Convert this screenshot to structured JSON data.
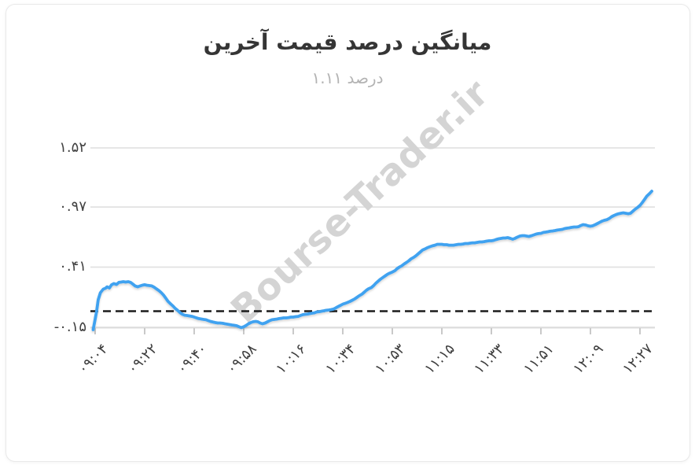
{
  "title": "میانگین درصد قیمت آخرین",
  "subtitle": "درصد ۱.۱۱",
  "watermark": "Bourse-Trader.ir",
  "colors": {
    "line": "#3fa2f0",
    "grid": "#e2e2e2",
    "axis": "#dcdcdc",
    "tick": "#c9c9c9",
    "baseline_dash": "#1b1b1b",
    "watermark": "#d4d4d4",
    "title": "#353535",
    "subtitle": "#b3b3b3",
    "tick_text": "#3d3d3d"
  },
  "chart_data": {
    "type": "line",
    "title": "میانگین درصد قیمت آخرین",
    "subtitle": "درصد ۱.۱۱",
    "legend_position": "none",
    "grid": "horizontal",
    "y_axis": {
      "tick_labels": [
        "۱.۵۲",
        "۰.۹۷",
        "۰.۴۱",
        "-۰.۱۵"
      ],
      "tick_values": [
        1.52,
        0.97,
        0.41,
        -0.15
      ],
      "range": [
        -0.15,
        1.52
      ]
    },
    "x_axis": {
      "tick_labels": [
        "۰۹:۰۴",
        "۰۹:۲۲",
        "۰۹:۴۰",
        "۰۹:۵۸",
        "۱۰:۱۶",
        "۱۰:۳۴",
        "۱۰:۵۳",
        "۱۱:۱۵",
        "۱۱:۳۳",
        "۱۱:۵۱",
        "۱۲:۰۹",
        "۱۲:۲۷"
      ],
      "unit": "time"
    },
    "baseline": {
      "value": 0,
      "style": "dashed"
    },
    "series": [
      {
        "name": "میانگین درصد قیمت آخرین",
        "final_value": 1.11,
        "points": [
          [
            0,
            -0.172
          ],
          [
            0.003,
            -0.091
          ],
          [
            0.006,
            -0.004
          ],
          [
            0.009,
            0.106
          ],
          [
            0.013,
            0.172
          ],
          [
            0.018,
            0.205
          ],
          [
            0.022,
            0.213
          ],
          [
            0.025,
            0.227
          ],
          [
            0.029,
            0.216
          ],
          [
            0.033,
            0.246
          ],
          [
            0.037,
            0.257
          ],
          [
            0.042,
            0.249
          ],
          [
            0.046,
            0.268
          ],
          [
            0.05,
            0.271
          ],
          [
            0.054,
            0.275
          ],
          [
            0.058,
            0.271
          ],
          [
            0.063,
            0.275
          ],
          [
            0.067,
            0.268
          ],
          [
            0.071,
            0.253
          ],
          [
            0.075,
            0.235
          ],
          [
            0.08,
            0.227
          ],
          [
            0.084,
            0.235
          ],
          [
            0.088,
            0.242
          ],
          [
            0.092,
            0.246
          ],
          [
            0.096,
            0.242
          ],
          [
            0.101,
            0.238
          ],
          [
            0.105,
            0.235
          ],
          [
            0.109,
            0.224
          ],
          [
            0.113,
            0.209
          ],
          [
            0.118,
            0.191
          ],
          [
            0.122,
            0.172
          ],
          [
            0.126,
            0.15
          ],
          [
            0.13,
            0.121
          ],
          [
            0.134,
            0.092
          ],
          [
            0.139,
            0.066
          ],
          [
            0.143,
            0.048
          ],
          [
            0.147,
            0.026
          ],
          [
            0.151,
            0.008
          ],
          [
            0.156,
            -0.015
          ],
          [
            0.16,
            -0.029
          ],
          [
            0.164,
            -0.037
          ],
          [
            0.168,
            -0.04
          ],
          [
            0.172,
            -0.044
          ],
          [
            0.177,
            -0.048
          ],
          [
            0.181,
            -0.055
          ],
          [
            0.185,
            -0.062
          ],
          [
            0.189,
            -0.069
          ],
          [
            0.194,
            -0.073
          ],
          [
            0.198,
            -0.077
          ],
          [
            0.202,
            -0.08
          ],
          [
            0.206,
            -0.088
          ],
          [
            0.21,
            -0.095
          ],
          [
            0.215,
            -0.102
          ],
          [
            0.219,
            -0.106
          ],
          [
            0.223,
            -0.11
          ],
          [
            0.227,
            -0.11
          ],
          [
            0.232,
            -0.113
          ],
          [
            0.236,
            -0.117
          ],
          [
            0.24,
            -0.121
          ],
          [
            0.244,
            -0.124
          ],
          [
            0.248,
            -0.128
          ],
          [
            0.253,
            -0.132
          ],
          [
            0.257,
            -0.135
          ],
          [
            0.261,
            -0.144
          ],
          [
            0.265,
            -0.153
          ],
          [
            0.27,
            -0.144
          ],
          [
            0.274,
            -0.132
          ],
          [
            0.278,
            -0.117
          ],
          [
            0.282,
            -0.106
          ],
          [
            0.286,
            -0.099
          ],
          [
            0.291,
            -0.095
          ],
          [
            0.295,
            -0.099
          ],
          [
            0.299,
            -0.11
          ],
          [
            0.303,
            -0.117
          ],
          [
            0.308,
            -0.11
          ],
          [
            0.312,
            -0.099
          ],
          [
            0.316,
            -0.088
          ],
          [
            0.32,
            -0.08
          ],
          [
            0.324,
            -0.077
          ],
          [
            0.329,
            -0.073
          ],
          [
            0.333,
            -0.069
          ],
          [
            0.337,
            -0.066
          ],
          [
            0.341,
            -0.062
          ],
          [
            0.346,
            -0.062
          ],
          [
            0.35,
            -0.059
          ],
          [
            0.354,
            -0.055
          ],
          [
            0.358,
            -0.055
          ],
          [
            0.362,
            -0.051
          ],
          [
            0.367,
            -0.048
          ],
          [
            0.371,
            -0.04
          ],
          [
            0.375,
            -0.033
          ],
          [
            0.379,
            -0.029
          ],
          [
            0.384,
            -0.026
          ],
          [
            0.388,
            -0.022
          ],
          [
            0.392,
            -0.018
          ],
          [
            0.396,
            -0.015
          ],
          [
            0.4,
            -0.007
          ],
          [
            0.405,
            -0.004
          ],
          [
            0.409,
            0
          ],
          [
            0.413,
            0.004
          ],
          [
            0.417,
            0.008
          ],
          [
            0.422,
            0.011
          ],
          [
            0.426,
            0.015
          ],
          [
            0.43,
            0.019
          ],
          [
            0.434,
            0.03
          ],
          [
            0.438,
            0.042
          ],
          [
            0.443,
            0.055
          ],
          [
            0.447,
            0.066
          ],
          [
            0.451,
            0.073
          ],
          [
            0.455,
            0.081
          ],
          [
            0.46,
            0.092
          ],
          [
            0.464,
            0.103
          ],
          [
            0.468,
            0.114
          ],
          [
            0.472,
            0.128
          ],
          [
            0.476,
            0.143
          ],
          [
            0.481,
            0.158
          ],
          [
            0.485,
            0.176
          ],
          [
            0.489,
            0.194
          ],
          [
            0.493,
            0.209
          ],
          [
            0.498,
            0.22
          ],
          [
            0.502,
            0.238
          ],
          [
            0.506,
            0.26
          ],
          [
            0.51,
            0.279
          ],
          [
            0.514,
            0.297
          ],
          [
            0.519,
            0.315
          ],
          [
            0.523,
            0.33
          ],
          [
            0.527,
            0.344
          ],
          [
            0.531,
            0.355
          ],
          [
            0.536,
            0.366
          ],
          [
            0.54,
            0.377
          ],
          [
            0.544,
            0.396
          ],
          [
            0.548,
            0.41
          ],
          [
            0.552,
            0.421
          ],
          [
            0.557,
            0.44
          ],
          [
            0.561,
            0.454
          ],
          [
            0.565,
            0.469
          ],
          [
            0.569,
            0.487
          ],
          [
            0.574,
            0.502
          ],
          [
            0.578,
            0.517
          ],
          [
            0.582,
            0.535
          ],
          [
            0.586,
            0.553
          ],
          [
            0.59,
            0.571
          ],
          [
            0.595,
            0.582
          ],
          [
            0.599,
            0.593
          ],
          [
            0.603,
            0.601
          ],
          [
            0.607,
            0.608
          ],
          [
            0.612,
            0.615
          ],
          [
            0.616,
            0.623
          ],
          [
            0.62,
            0.623
          ],
          [
            0.624,
            0.623
          ],
          [
            0.628,
            0.619
          ],
          [
            0.633,
            0.619
          ],
          [
            0.637,
            0.615
          ],
          [
            0.641,
            0.615
          ],
          [
            0.645,
            0.615
          ],
          [
            0.65,
            0.619
          ],
          [
            0.654,
            0.623
          ],
          [
            0.658,
            0.623
          ],
          [
            0.662,
            0.626
          ],
          [
            0.666,
            0.63
          ],
          [
            0.671,
            0.63
          ],
          [
            0.675,
            0.634
          ],
          [
            0.679,
            0.637
          ],
          [
            0.683,
            0.637
          ],
          [
            0.688,
            0.641
          ],
          [
            0.692,
            0.645
          ],
          [
            0.696,
            0.645
          ],
          [
            0.7,
            0.648
          ],
          [
            0.704,
            0.652
          ],
          [
            0.709,
            0.656
          ],
          [
            0.713,
            0.656
          ],
          [
            0.717,
            0.659
          ],
          [
            0.721,
            0.667
          ],
          [
            0.726,
            0.674
          ],
          [
            0.73,
            0.678
          ],
          [
            0.734,
            0.681
          ],
          [
            0.738,
            0.681
          ],
          [
            0.742,
            0.685
          ],
          [
            0.747,
            0.678
          ],
          [
            0.751,
            0.67
          ],
          [
            0.755,
            0.678
          ],
          [
            0.759,
            0.689
          ],
          [
            0.764,
            0.7
          ],
          [
            0.768,
            0.703
          ],
          [
            0.772,
            0.703
          ],
          [
            0.776,
            0.7
          ],
          [
            0.78,
            0.696
          ],
          [
            0.785,
            0.703
          ],
          [
            0.789,
            0.711
          ],
          [
            0.793,
            0.718
          ],
          [
            0.797,
            0.722
          ],
          [
            0.802,
            0.725
          ],
          [
            0.806,
            0.733
          ],
          [
            0.81,
            0.736
          ],
          [
            0.814,
            0.74
          ],
          [
            0.818,
            0.744
          ],
          [
            0.823,
            0.747
          ],
          [
            0.827,
            0.751
          ],
          [
            0.831,
            0.755
          ],
          [
            0.835,
            0.758
          ],
          [
            0.84,
            0.762
          ],
          [
            0.844,
            0.769
          ],
          [
            0.848,
            0.773
          ],
          [
            0.852,
            0.776
          ],
          [
            0.856,
            0.78
          ],
          [
            0.861,
            0.784
          ],
          [
            0.865,
            0.784
          ],
          [
            0.869,
            0.787
          ],
          [
            0.873,
            0.798
          ],
          [
            0.877,
            0.806
          ],
          [
            0.882,
            0.802
          ],
          [
            0.886,
            0.795
          ],
          [
            0.89,
            0.791
          ],
          [
            0.894,
            0.795
          ],
          [
            0.899,
            0.806
          ],
          [
            0.903,
            0.817
          ],
          [
            0.907,
            0.828
          ],
          [
            0.911,
            0.839
          ],
          [
            0.915,
            0.846
          ],
          [
            0.92,
            0.853
          ],
          [
            0.924,
            0.864
          ],
          [
            0.928,
            0.879
          ],
          [
            0.932,
            0.89
          ],
          [
            0.937,
            0.901
          ],
          [
            0.941,
            0.908
          ],
          [
            0.945,
            0.912
          ],
          [
            0.949,
            0.916
          ],
          [
            0.953,
            0.912
          ],
          [
            0.958,
            0.908
          ],
          [
            0.962,
            0.912
          ],
          [
            0.966,
            0.93
          ],
          [
            0.97,
            0.949
          ],
          [
            0.975,
            0.967
          ],
          [
            0.979,
            0.985
          ],
          [
            0.983,
            1.011
          ],
          [
            0.987,
            1.04
          ],
          [
            0.991,
            1.07
          ],
          [
            0.996,
            1.095
          ],
          [
            1,
            1.117
          ]
        ]
      }
    ]
  }
}
